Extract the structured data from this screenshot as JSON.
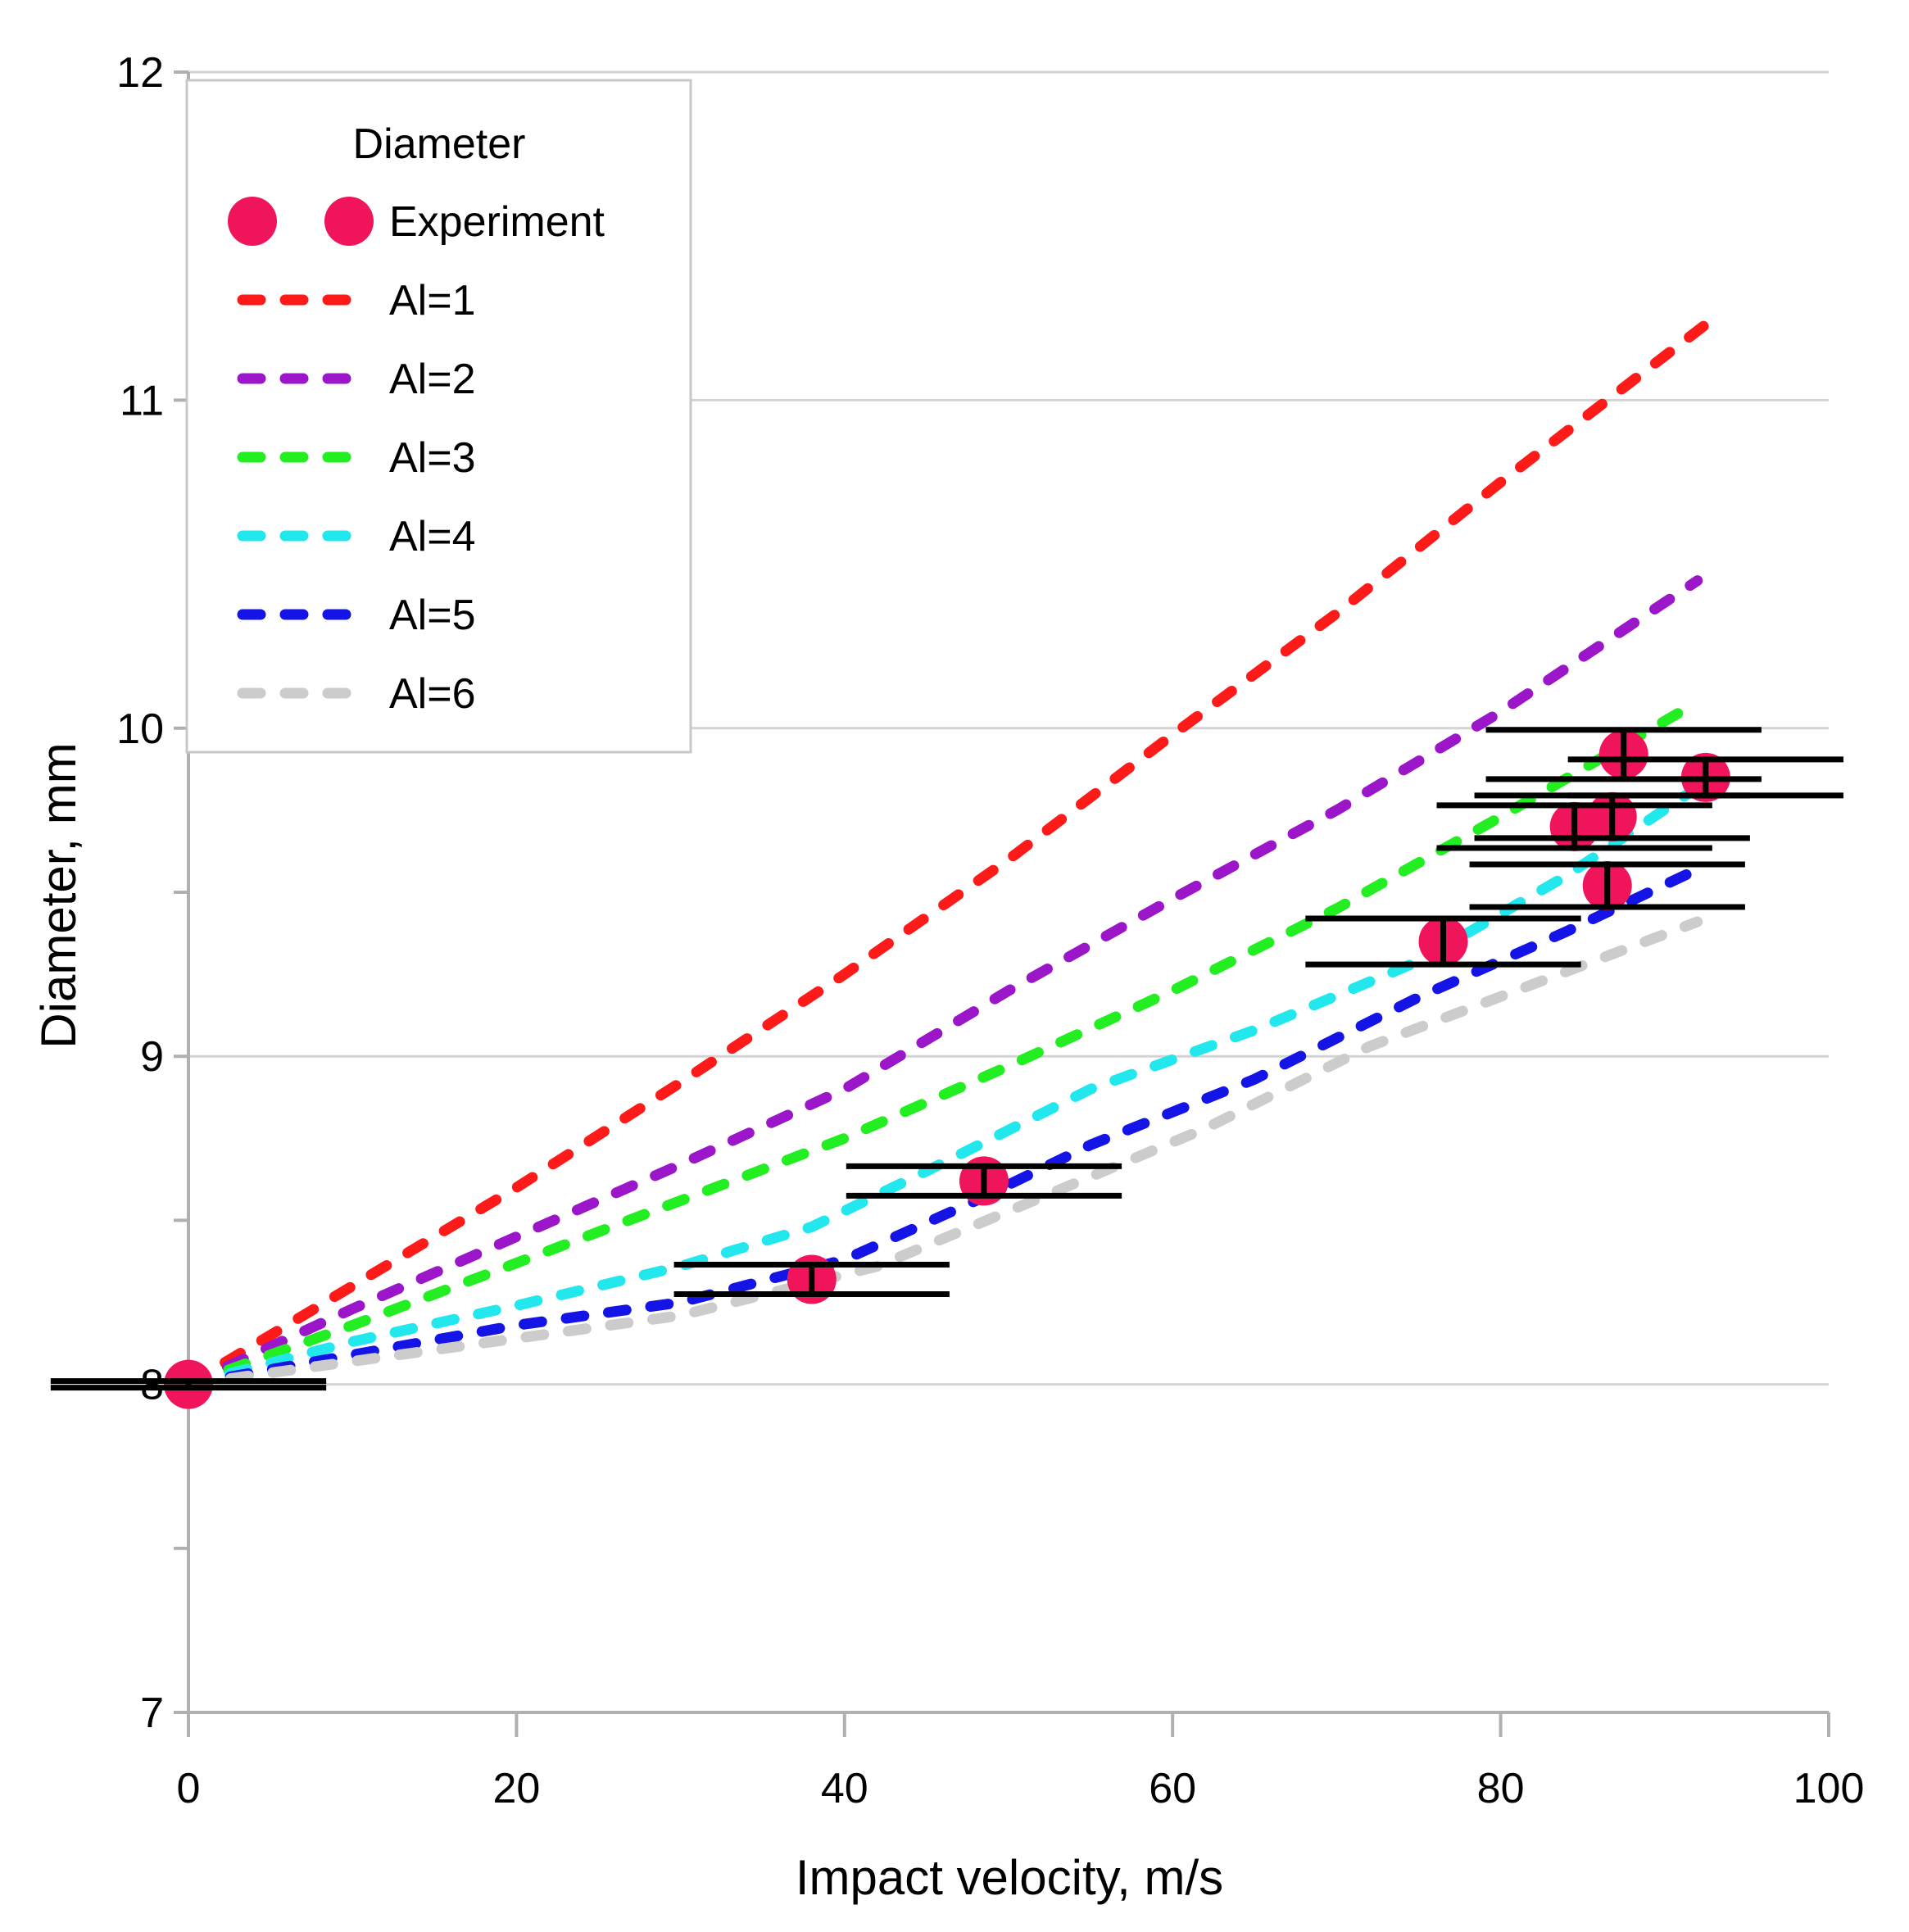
{
  "chart_data": {
    "type": "scatter",
    "xlabel": "Impact velocity, m/s",
    "ylabel": "Diameter, mm",
    "xlim": [
      0,
      100
    ],
    "ylim": [
      7,
      12
    ],
    "x_ticks": [
      0,
      20,
      40,
      60,
      80,
      100
    ],
    "y_tick_labels": [
      {
        "value": 7,
        "label": "7"
      },
      {
        "value": 8,
        "label": "8"
      },
      {
        "value": 9,
        "label": "9"
      },
      {
        "value": 10,
        "label": "10"
      },
      {
        "value": 11,
        "label": "11"
      },
      {
        "value": 12,
        "label": "12"
      }
    ],
    "y_minor_ticks": [
      7.5,
      8.5,
      9.5
    ],
    "grid": true,
    "legend": {
      "title": "Diameter",
      "position": "top-left"
    },
    "experiment": {
      "name": "Experiment",
      "color": "#f0145a",
      "points": [
        {
          "x": 0,
          "y": 8.0,
          "err": 0.01,
          "xerr": 4
        },
        {
          "x": 38,
          "y": 8.32,
          "err": 0.045,
          "xerr": 4
        },
        {
          "x": 48.5,
          "y": 8.62,
          "err": 0.045,
          "xerr": 4
        },
        {
          "x": 76.5,
          "y": 9.35,
          "err": 0.07,
          "xerr": 4
        },
        {
          "x": 84.5,
          "y": 9.7,
          "err": 0.065,
          "xerr": 4
        },
        {
          "x": 86.5,
          "y": 9.52,
          "err": 0.065,
          "xerr": 4
        },
        {
          "x": 86.8,
          "y": 9.73,
          "err": 0.065,
          "xerr": 4
        },
        {
          "x": 87.5,
          "y": 9.92,
          "err": 0.075,
          "xerr": 4
        },
        {
          "x": 92.5,
          "y": 9.85,
          "err": 0.055,
          "xerr": 4
        }
      ]
    },
    "series": [
      {
        "name": "Al=1",
        "color": "#ff1a1a",
        "x": [
          0,
          10,
          20,
          30,
          40,
          50,
          60,
          70,
          80,
          93
        ],
        "y": [
          8.0,
          8.3,
          8.6,
          8.92,
          9.25,
          9.6,
          9.98,
          10.35,
          10.75,
          11.25
        ]
      },
      {
        "name": "Al=2",
        "color": "#9a16c8",
        "x": [
          0,
          10,
          20,
          30,
          40,
          50,
          60,
          70,
          80,
          92
        ],
        "y": [
          8.0,
          8.23,
          8.45,
          8.67,
          8.9,
          9.2,
          9.48,
          9.75,
          10.05,
          10.45
        ]
      },
      {
        "name": "Al=3",
        "color": "#22ee22",
        "x": [
          0,
          10,
          20,
          30,
          40,
          50,
          60,
          70,
          80,
          92
        ],
        "y": [
          8.0,
          8.18,
          8.37,
          8.56,
          8.75,
          8.97,
          9.2,
          9.45,
          9.73,
          10.08
        ]
      },
      {
        "name": "Al=4",
        "color": "#22e8ee",
        "x": [
          0,
          10,
          20,
          30,
          38,
          45,
          55,
          65,
          75,
          84,
          92
        ],
        "y": [
          8.0,
          8.13,
          8.24,
          8.36,
          8.48,
          8.65,
          8.9,
          9.08,
          9.29,
          9.55,
          9.82
        ]
      },
      {
        "name": "Al=5",
        "color": "#1414e6",
        "x": [
          0,
          10,
          20,
          30,
          40,
          48,
          55,
          65,
          75,
          84,
          92
        ],
        "y": [
          8.0,
          8.09,
          8.18,
          8.25,
          8.38,
          8.56,
          8.73,
          8.93,
          9.18,
          9.38,
          9.57
        ]
      },
      {
        "name": "Al=6",
        "color": "#cccccc",
        "x": [
          0,
          10,
          20,
          30,
          42,
          52,
          62,
          72,
          82,
          92
        ],
        "y": [
          8.0,
          8.07,
          8.14,
          8.21,
          8.36,
          8.57,
          8.78,
          9.03,
          9.22,
          9.41
        ]
      }
    ]
  }
}
